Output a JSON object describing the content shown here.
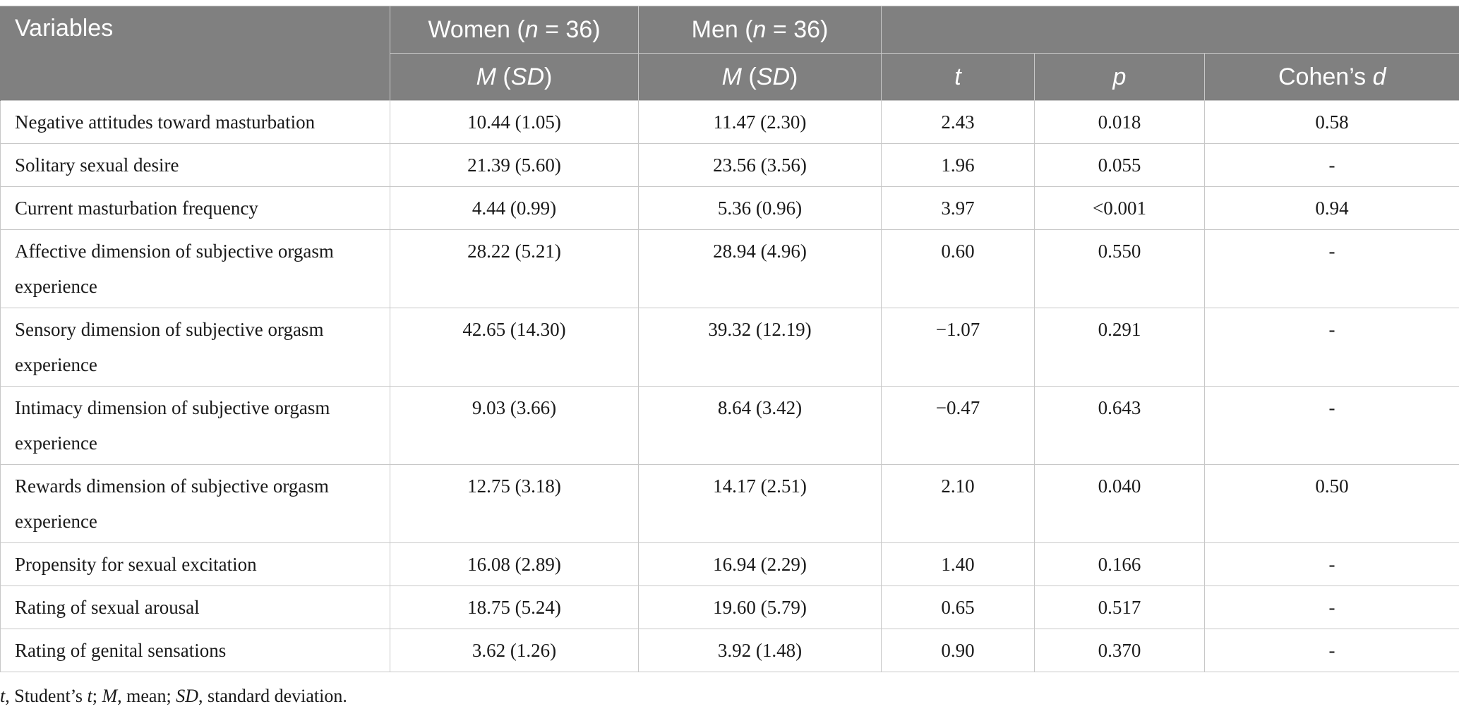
{
  "table": {
    "header": {
      "variables": "Variables",
      "women_label": "Women (",
      "women_n": "n",
      "women_count": " = 36)",
      "men_label": "Men (",
      "men_n": "n",
      "men_count": " = 36)",
      "m_letter": "M",
      "sd_open": " (",
      "sd_letter": "SD",
      "sd_close": ")",
      "t": "t",
      "p": "p",
      "cohen_label": "Cohen’s ",
      "cohen_d": "d"
    },
    "rows": [
      {
        "variable": "Negative attitudes toward masturbation",
        "women": "10.44 (1.05)",
        "men": "11.47 (2.30)",
        "t": "2.43",
        "p": "0.018",
        "d": "0.58"
      },
      {
        "variable": "Solitary sexual desire",
        "women": "21.39 (5.60)",
        "men": "23.56 (3.56)",
        "t": "1.96",
        "p": "0.055",
        "d": "-"
      },
      {
        "variable": "Current masturbation frequency",
        "women": "4.44 (0.99)",
        "men": "5.36 (0.96)",
        "t": "3.97",
        "p": "<0.001",
        "d": "0.94"
      },
      {
        "variable": "Affective dimension of subjective orgasm experience",
        "women": "28.22 (5.21)",
        "men": "28.94 (4.96)",
        "t": "0.60",
        "p": "0.550",
        "d": "-"
      },
      {
        "variable": "Sensory dimension of subjective orgasm experience",
        "women": "42.65 (14.30)",
        "men": "39.32 (12.19)",
        "t": "−1.07",
        "p": "0.291",
        "d": "-"
      },
      {
        "variable": "Intimacy dimension of subjective orgasm experience",
        "women": "9.03 (3.66)",
        "men": "8.64 (3.42)",
        "t": "−0.47",
        "p": "0.643",
        "d": "-"
      },
      {
        "variable": "Rewards dimension of subjective orgasm experience",
        "women": "12.75 (3.18)",
        "men": "14.17 (2.51)",
        "t": "2.10",
        "p": "0.040",
        "d": "0.50"
      },
      {
        "variable": "Propensity for sexual excitation",
        "women": "16.08 (2.89)",
        "men": "16.94 (2.29)",
        "t": "1.40",
        "p": "0.166",
        "d": "-"
      },
      {
        "variable": "Rating of sexual arousal",
        "women": "18.75 (5.24)",
        "men": "19.60 (5.79)",
        "t": "0.65",
        "p": "0.517",
        "d": "-"
      },
      {
        "variable": "Rating of genital sensations",
        "women": "3.62 (1.26)",
        "men": "3.92 (1.48)",
        "t": "0.90",
        "p": "0.370",
        "d": "-"
      }
    ]
  },
  "note": {
    "t_letter": "t",
    "part1": ", Student’s ",
    "t_letter2": "t",
    "part2": "; ",
    "m_letter": "M",
    "part3": ", mean; ",
    "sd_letter": "SD",
    "part4": ", standard deviation."
  },
  "colors": {
    "header_bg": "#808080",
    "header_text": "#ffffff",
    "grid": "#c8c8c8"
  }
}
